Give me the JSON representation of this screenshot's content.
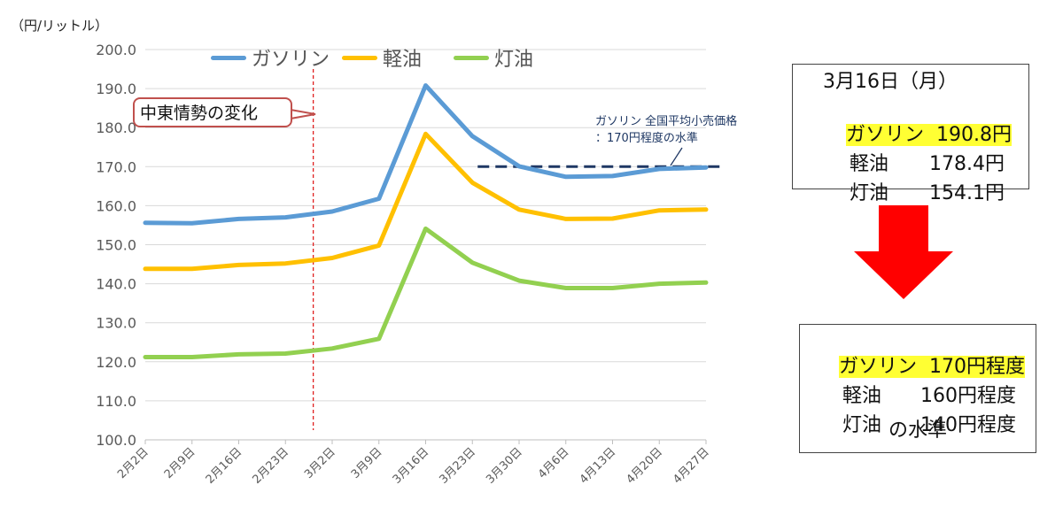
{
  "chart_data": {
    "type": "line",
    "y_unit_label": "（円/リットル）",
    "categories": [
      "2月2日",
      "2月9日",
      "2月16日",
      "2月23日",
      "3月2日",
      "3月9日",
      "3月16日",
      "3月23日",
      "3月30日",
      "4月6日",
      "4月13日",
      "4月20日",
      "4月27日"
    ],
    "ylim": [
      100,
      200
    ],
    "yticks": [
      "100.0",
      "110.0",
      "120.0",
      "130.0",
      "140.0",
      "150.0",
      "160.0",
      "170.0",
      "180.0",
      "190.0",
      "200.0"
    ],
    "grid": true,
    "legend_position": "top",
    "series": [
      {
        "name": "ガソリン",
        "color": "#5b9bd5",
        "values": [
          155.6,
          155.5,
          156.6,
          157.0,
          158.5,
          161.8,
          190.8,
          177.8,
          170.1,
          167.4,
          167.6,
          169.4,
          169.8
        ]
      },
      {
        "name": "軽油",
        "color": "#ffc000",
        "values": [
          143.8,
          143.8,
          144.8,
          145.2,
          146.6,
          149.8,
          178.4,
          165.9,
          159.0,
          156.6,
          156.7,
          158.8,
          159.0
        ]
      },
      {
        "name": "灯油",
        "color": "#92d050",
        "values": [
          121.2,
          121.2,
          121.9,
          122.1,
          123.4,
          125.9,
          154.1,
          145.4,
          140.8,
          138.9,
          138.9,
          140.0,
          140.3
        ]
      }
    ],
    "reference_line": {
      "value": 170,
      "from_category": "3月23日",
      "color": "#1f3864"
    },
    "event_marker": {
      "position_between": [
        "2月23日",
        "3月2日"
      ],
      "color": "#e02020",
      "label": "中東情勢の変化"
    },
    "annotation": {
      "line1": "ガソリン 全国平均小売価格",
      "line2": "：170円程度の水準"
    }
  },
  "box_before": {
    "heading": "3月16日（月）",
    "rows": [
      {
        "label": "ガソリン",
        "value": "190.8円",
        "highlight": true
      },
      {
        "label": "軽油",
        "value": "178.4円",
        "highlight": false
      },
      {
        "label": "灯油",
        "value": "154.1円",
        "highlight": false
      }
    ]
  },
  "box_after": {
    "rows": [
      {
        "label": "ガソリン",
        "value": "170円程度",
        "highlight": true
      },
      {
        "label": "軽油",
        "value": "160円程度",
        "highlight": false
      },
      {
        "label": "灯油",
        "value": "140円程度",
        "highlight": false
      }
    ],
    "footer": "の水準"
  },
  "colors": {
    "arrow": "#ff0000",
    "highlight": "#ffff33"
  }
}
